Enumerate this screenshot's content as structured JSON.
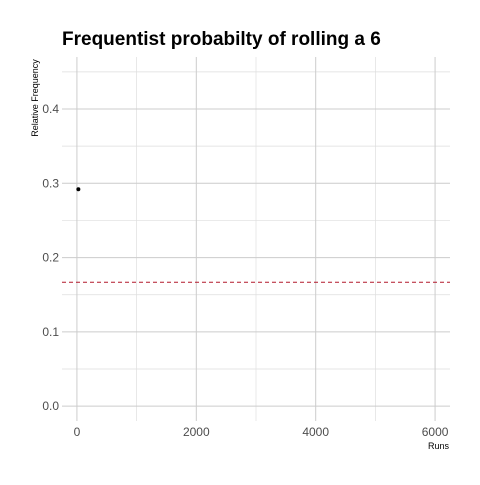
{
  "chart_data": {
    "type": "scatter",
    "title": "Frequentist probabilty of rolling a 6",
    "xlabel": "Runs",
    "ylabel": "Relative Frequency",
    "xlim": [
      -250,
      6250
    ],
    "ylim": [
      -0.02,
      0.47
    ],
    "x_ticks": [
      0,
      2000,
      4000,
      6000
    ],
    "x_minor_ticks": [
      1000,
      3000,
      5000
    ],
    "y_ticks": [
      0.0,
      0.1,
      0.2,
      0.3,
      0.4
    ],
    "y_minor_ticks": [
      0.05,
      0.15,
      0.25,
      0.35,
      0.45
    ],
    "y_tick_labels": [
      "0.0",
      "0.1",
      "0.2",
      "0.3",
      "0.4"
    ],
    "x_tick_labels": [
      "0",
      "2000",
      "4000",
      "6000"
    ],
    "grid": true,
    "points": [
      {
        "x": 24,
        "y": 0.292
      }
    ],
    "reference_line": {
      "y": 0.1667,
      "style": "dashed",
      "color": "#b2182b"
    },
    "point_color": "#000000"
  }
}
